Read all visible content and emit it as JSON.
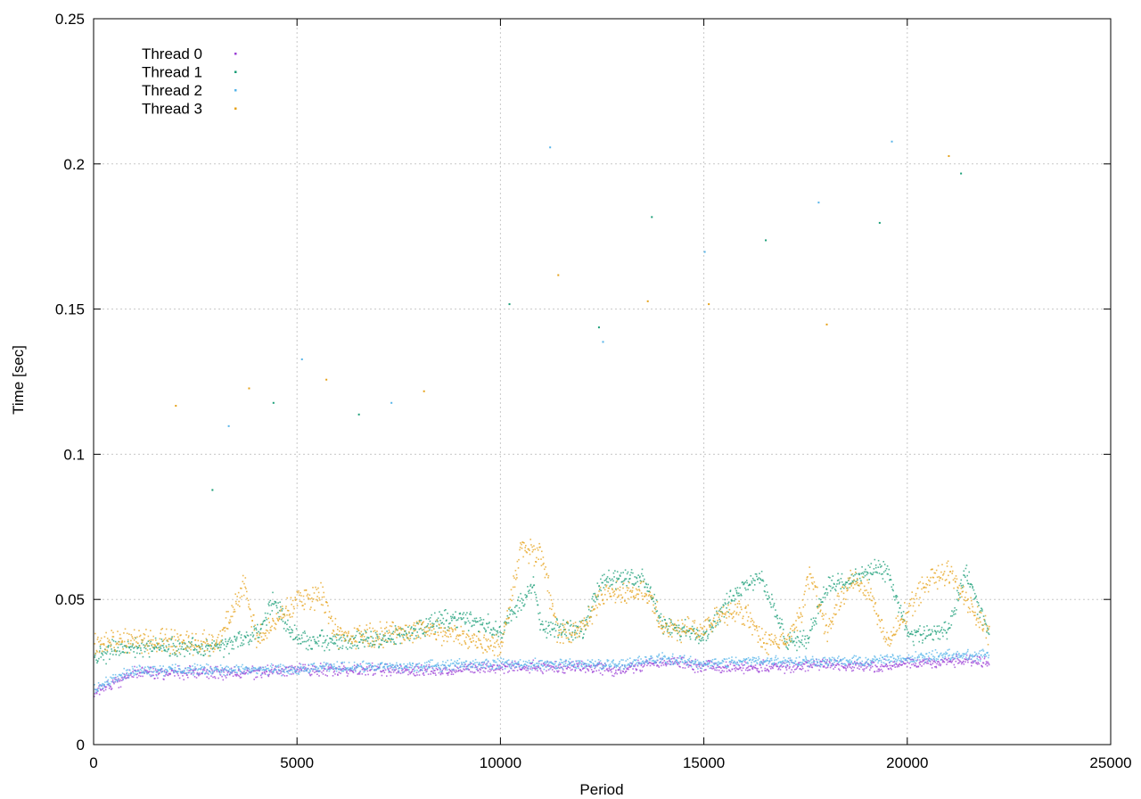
{
  "chart_data": {
    "type": "scatter",
    "title": "",
    "xlabel": "Period",
    "ylabel": "Time [sec]",
    "xlim": [
      0,
      25000
    ],
    "ylim": [
      0,
      0.25
    ],
    "x_ticks": [
      0,
      5000,
      10000,
      15000,
      20000,
      25000
    ],
    "y_ticks": [
      0,
      0.05,
      0.1,
      0.15,
      0.2,
      0.25
    ],
    "x_tick_labels": [
      "0",
      "5000",
      "10000",
      "15000",
      "20000",
      "25000"
    ],
    "y_tick_labels": [
      "0",
      "0.05",
      "0.1",
      "0.15",
      "0.2",
      "0.25"
    ],
    "grid": true,
    "legend_position": "top-left",
    "series": [
      {
        "name": "Thread 0",
        "color": "#9b3fd6",
        "x": [
          0,
          1000,
          2000,
          3000,
          4000,
          5000,
          6000,
          7000,
          8000,
          9000,
          10000,
          11000,
          12000,
          13000,
          14000,
          15000,
          16000,
          17000,
          18000,
          19000,
          20000,
          21000,
          22000
        ],
        "y": [
          0.018,
          0.025,
          0.025,
          0.025,
          0.025,
          0.026,
          0.026,
          0.026,
          0.026,
          0.026,
          0.027,
          0.027,
          0.027,
          0.026,
          0.029,
          0.027,
          0.027,
          0.027,
          0.028,
          0.027,
          0.028,
          0.029,
          0.029
        ]
      },
      {
        "name": "Thread 1",
        "color": "#1a9e77",
        "x": [
          0,
          500,
          1000,
          2000,
          3000,
          3500,
          4000,
          4400,
          5000,
          6000,
          7000,
          8000,
          8500,
          9000,
          10000,
          10800,
          11000,
          12000,
          12500,
          13000,
          13500,
          14000,
          15000,
          15500,
          16000,
          16400,
          17000,
          17500,
          18000,
          18500,
          19000,
          19500,
          20000,
          20500,
          21000,
          21400,
          22000
        ],
        "y": [
          0.03,
          0.033,
          0.034,
          0.034,
          0.033,
          0.036,
          0.038,
          0.05,
          0.036,
          0.036,
          0.036,
          0.04,
          0.043,
          0.044,
          0.04,
          0.055,
          0.04,
          0.04,
          0.057,
          0.057,
          0.058,
          0.041,
          0.038,
          0.048,
          0.056,
          0.058,
          0.036,
          0.036,
          0.055,
          0.056,
          0.06,
          0.06,
          0.038,
          0.038,
          0.04,
          0.06,
          0.038
        ]
      },
      {
        "name": "Thread 2",
        "color": "#56b4e9",
        "x": [
          0,
          1000,
          2000,
          3000,
          4000,
          5000,
          6000,
          7000,
          8000,
          9000,
          10000,
          11000,
          12000,
          13000,
          14000,
          15000,
          16000,
          17000,
          18000,
          19000,
          20000,
          21000,
          22000
        ],
        "y": [
          0.02,
          0.026,
          0.026,
          0.026,
          0.026,
          0.026,
          0.027,
          0.027,
          0.027,
          0.028,
          0.028,
          0.028,
          0.028,
          0.028,
          0.03,
          0.028,
          0.029,
          0.029,
          0.029,
          0.029,
          0.03,
          0.031,
          0.031
        ]
      },
      {
        "name": "Thread 3",
        "color": "#e6a219",
        "x": [
          0,
          500,
          1000,
          2000,
          3000,
          3700,
          4000,
          5000,
          5600,
          6000,
          7000,
          8000,
          9000,
          10000,
          10500,
          11000,
          11400,
          12000,
          12600,
          13000,
          13600,
          14000,
          15000,
          15400,
          16000,
          16500,
          17000,
          17400,
          17600,
          18000,
          18600,
          19000,
          19500,
          20000,
          20500,
          20700,
          21000,
          22000
        ],
        "y": [
          0.034,
          0.036,
          0.036,
          0.036,
          0.035,
          0.055,
          0.036,
          0.05,
          0.052,
          0.037,
          0.038,
          0.04,
          0.038,
          0.034,
          0.069,
          0.065,
          0.038,
          0.04,
          0.054,
          0.053,
          0.052,
          0.04,
          0.04,
          0.046,
          0.046,
          0.035,
          0.036,
          0.046,
          0.06,
          0.04,
          0.057,
          0.055,
          0.035,
          0.047,
          0.057,
          0.058,
          0.06,
          0.038
        ]
      }
    ],
    "outliers": [
      {
        "x": 2000,
        "y": 0.117
      },
      {
        "x": 2900,
        "y": 0.088
      },
      {
        "x": 3300,
        "y": 0.11
      },
      {
        "x": 3800,
        "y": 0.123
      },
      {
        "x": 4400,
        "y": 0.118
      },
      {
        "x": 5100,
        "y": 0.133
      },
      {
        "x": 5700,
        "y": 0.126
      },
      {
        "x": 6500,
        "y": 0.114
      },
      {
        "x": 7300,
        "y": 0.118
      },
      {
        "x": 8100,
        "y": 0.122
      },
      {
        "x": 10200,
        "y": 0.152
      },
      {
        "x": 11200,
        "y": 0.206
      },
      {
        "x": 11400,
        "y": 0.162
      },
      {
        "x": 12400,
        "y": 0.144
      },
      {
        "x": 12500,
        "y": 0.139
      },
      {
        "x": 13600,
        "y": 0.153
      },
      {
        "x": 13700,
        "y": 0.182
      },
      {
        "x": 15000,
        "y": 0.17
      },
      {
        "x": 15100,
        "y": 0.152
      },
      {
        "x": 16500,
        "y": 0.174
      },
      {
        "x": 17800,
        "y": 0.187
      },
      {
        "x": 18000,
        "y": 0.145
      },
      {
        "x": 19300,
        "y": 0.18
      },
      {
        "x": 19600,
        "y": 0.208
      },
      {
        "x": 21000,
        "y": 0.203
      },
      {
        "x": 21300,
        "y": 0.197
      }
    ]
  }
}
